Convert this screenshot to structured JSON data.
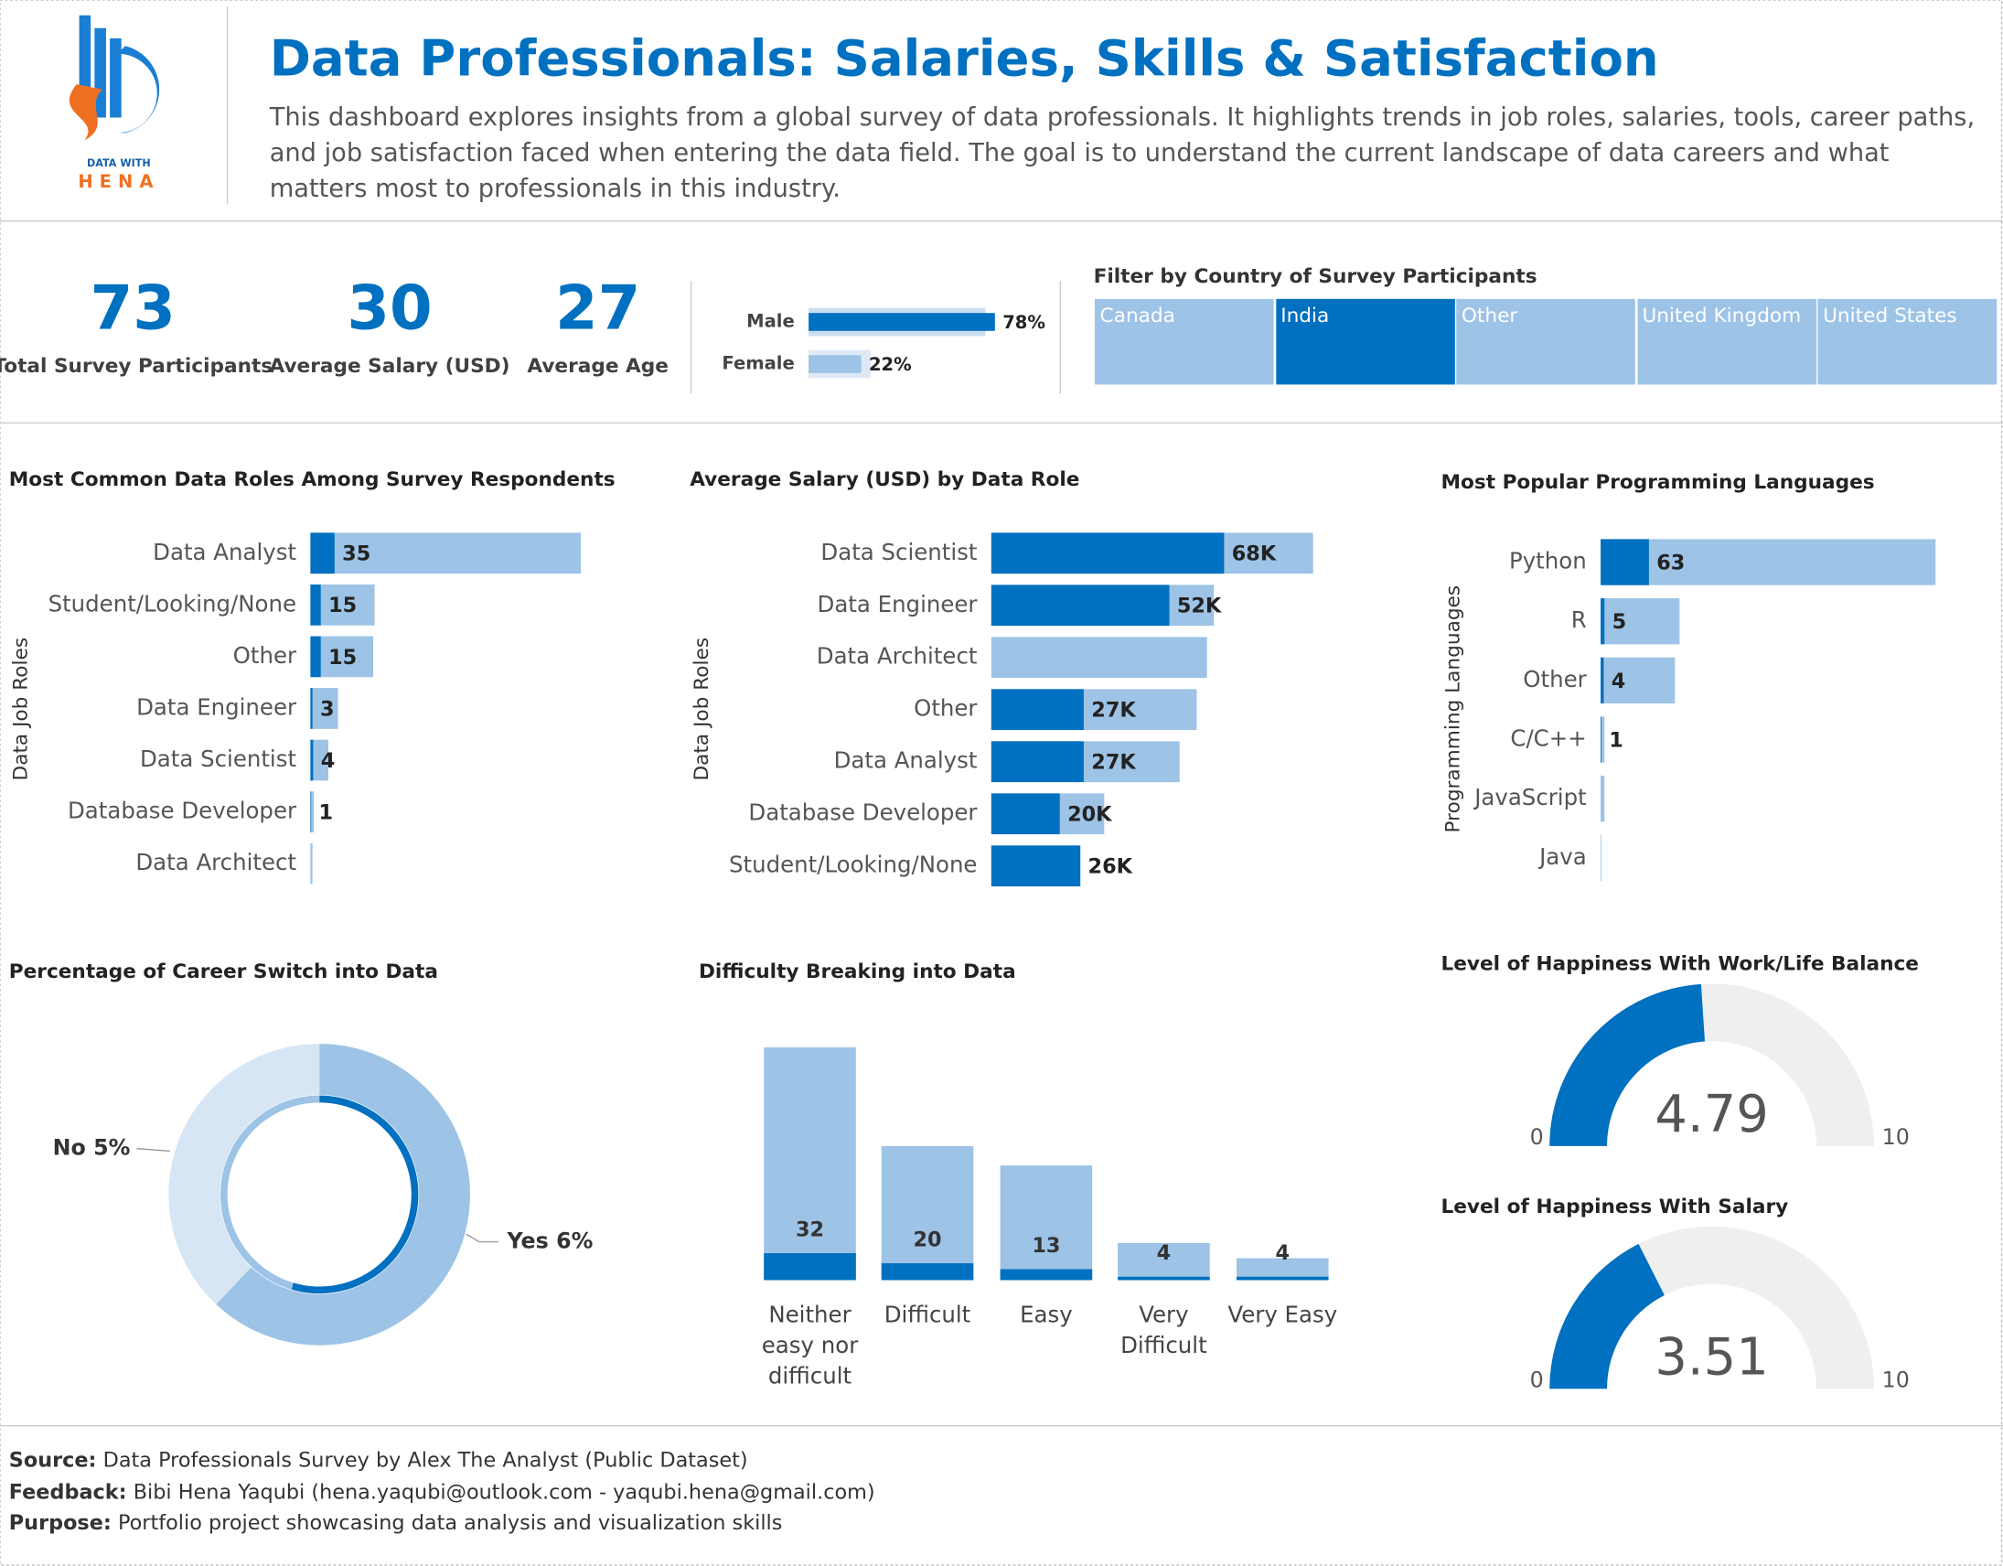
{
  "header": {
    "logo_line1": "DATA WITH",
    "logo_line2": "HENA",
    "title": "Data Professionals: Salaries, Skills & Satisfaction",
    "description": "This dashboard explores insights from a global survey of data professionals. It highlights trends in job roles, salaries, tools, career paths, and job satisfaction faced when entering the data field. The goal is to understand the current landscape of data careers and what matters most to professionals in this industry."
  },
  "kpis": [
    {
      "value": 73,
      "label": "Total Survey Participants"
    },
    {
      "value": 30,
      "label": "Average Salary (USD)"
    },
    {
      "value": 27,
      "label": "Average Age"
    }
  ],
  "filter": {
    "title": "Filter by Country of Survey Participants",
    "options": [
      "Canada",
      "India",
      "Other",
      "United Kingdom",
      "United States"
    ],
    "selected_index": 1,
    "color": "#9dc3e6",
    "selected_color": "#0070c0"
  },
  "footer": [
    {
      "label": "Source:",
      "text": "Data Professionals Survey by Alex The Analyst (Public Dataset)"
    },
    {
      "label": "Feedback:",
      "text": "Bibi Hena Yaqubi (hena.yaqubi@outlook.com - yaqubi.hena@gmail.com)"
    },
    {
      "label": "Purpose:",
      "text": "Portfolio project showcasing data analysis and visualization skills"
    }
  ],
  "chart_data": [
    {
      "type": "hbar",
      "categories": [
        "Male",
        "Female"
      ],
      "series": [
        {
          "colors": [
            "#0070c0",
            "#9dc3e6"
          ],
          "values": [
            78,
            22
          ],
          "value_labels": [
            "78%",
            "22%"
          ]
        },
        {
          "colors": [
            "#c9def1",
            "#ddeaf6"
          ],
          "values": [
            74,
            26
          ]
        }
      ]
    },
    {
      "type": "hbar",
      "title": "Most Common Data Roles Among Survey Respondents",
      "y_label": "Data Job Roles",
      "categories": [
        "Data Analyst",
        "Student/Looking/None",
        "Other",
        "Data Engineer",
        "Data Scientist",
        "Database Developer",
        "Data Architect"
      ],
      "series": [
        {
          "color": "#0070c0",
          "values": [
            35,
            15,
            15,
            3,
            4,
            1,
            null
          ]
        },
        {
          "color": "#9dc3e6",
          "values": [
            392,
            93,
            91,
            40,
            26,
            5,
            3
          ]
        }
      ]
    },
    {
      "type": "hbar",
      "title": "Average Salary (USD) by Data Role",
      "y_label": "Data Job Roles",
      "categories": [
        "Data Scientist",
        "Data Engineer",
        "Data Architect",
        "Other",
        "Data Analyst",
        "Database Developer",
        "Student/Looking/None"
      ],
      "series": [
        {
          "color": "#0070c0",
          "values": [
            68000,
            52000,
            null,
            27000,
            27000,
            20000,
            26000
          ],
          "value_labels": [
            "68K",
            "52K",
            null,
            "27K",
            "27K",
            "20K",
            "26K"
          ]
        },
        {
          "color": "#9dc3e6",
          "values": [
            94000,
            65000,
            63000,
            60000,
            55000,
            33000,
            26000
          ]
        }
      ]
    },
    {
      "type": "hbar",
      "title": "Most Popular Programming Languages",
      "y_label": "Programming Languages",
      "categories": [
        "Python",
        "R",
        "Other",
        "C/C++",
        "JavaScript",
        "Java"
      ],
      "series": [
        {
          "color": "#0070c0",
          "values": [
            63,
            5,
            4,
            1,
            null,
            null
          ]
        },
        {
          "color": "#9dc3e6",
          "values": [
            437,
            103,
            97,
            5,
            5,
            1
          ]
        }
      ]
    },
    {
      "type": "donut",
      "title": "Percentage of Career Switch into Data",
      "categories": [
        "Yes",
        "No"
      ],
      "series": [
        {
          "colors": [
            "#0070c0",
            "#9dc3e6"
          ],
          "values": [
            6,
            5
          ],
          "value_labels": [
            "6%",
            "5%"
          ]
        },
        {
          "colors": [
            "#9dc3e6",
            "#d6e6f4"
          ],
          "values": [
            62,
            38
          ]
        }
      ]
    },
    {
      "type": "column",
      "title": "Difficulty Breaking into Data",
      "categories": [
        "Neither easy nor difficult",
        "Difficult",
        "Easy",
        "Very Difficult",
        "Very Easy"
      ],
      "series": [
        {
          "color": "#0070c0",
          "values": [
            32,
            20,
            13,
            4,
            4
          ]
        },
        {
          "color": "#9dc3e6",
          "values": [
            276,
            159,
            136,
            44,
            26
          ]
        }
      ]
    },
    {
      "type": "gauge",
      "title": "Level of Happiness With Work/Life Balance",
      "value": 4.79,
      "min": 0,
      "max": 10,
      "color": "#0070c0",
      "track_color": "#efefef"
    },
    {
      "type": "gauge",
      "title": "Level of Happiness With Salary",
      "value": 3.51,
      "min": 0,
      "max": 10,
      "color": "#0070c0",
      "track_color": "#efefef"
    }
  ]
}
